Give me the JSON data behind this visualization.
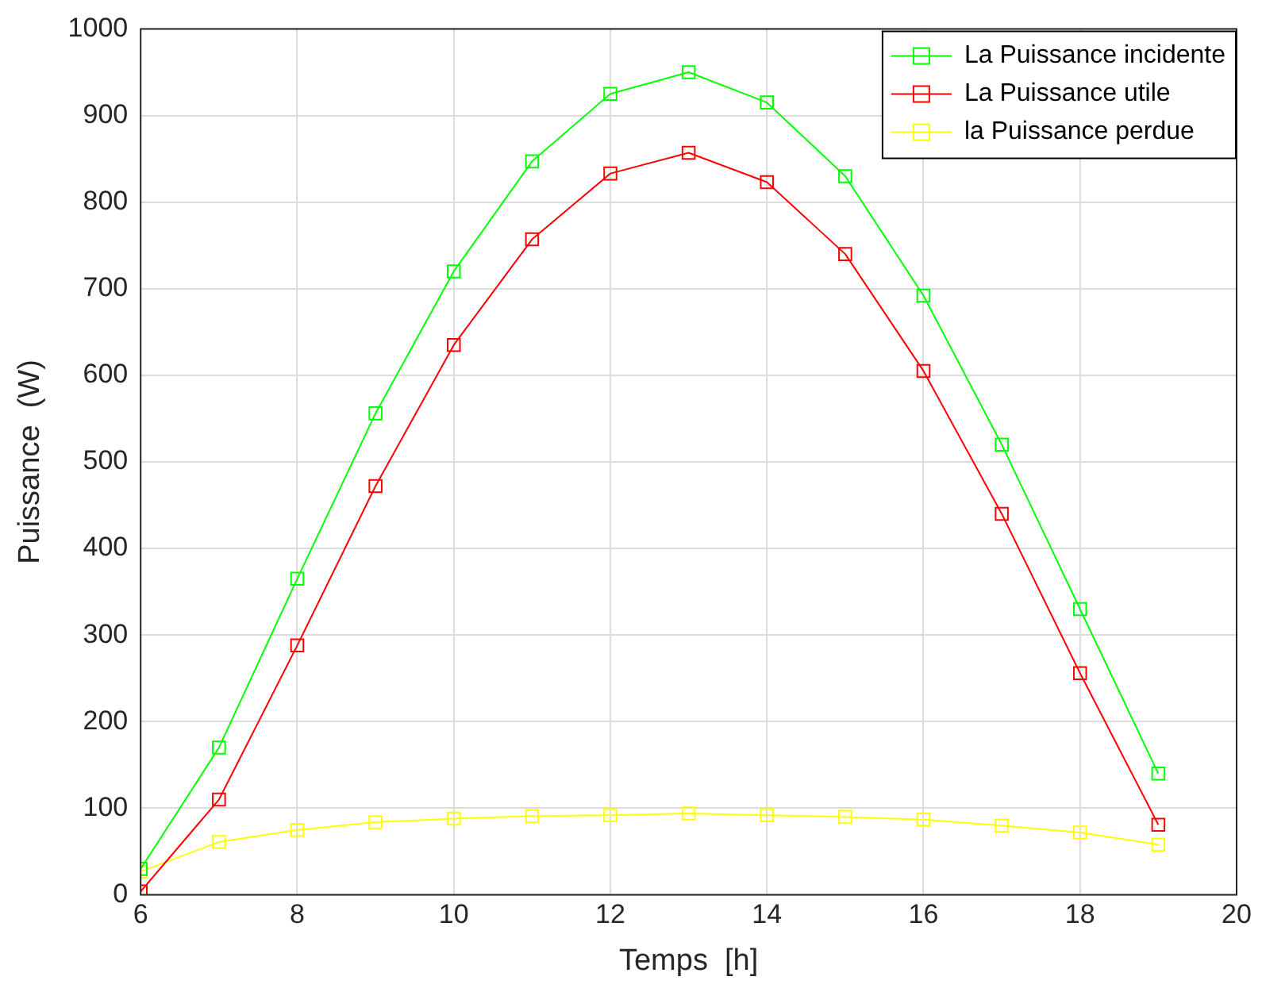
{
  "chart_data": {
    "type": "line",
    "xlabel": "Temps  [h]",
    "ylabel": "Puissance  (W)",
    "x": [
      6,
      7,
      8,
      9,
      10,
      11,
      12,
      13,
      14,
      15,
      16,
      17,
      18,
      19
    ],
    "series": [
      {
        "name": "La Puissance incidente",
        "color": "#00ff00",
        "values": [
          30,
          170,
          365,
          556,
          720,
          847,
          925,
          950,
          915,
          830,
          692,
          520,
          330,
          140
        ]
      },
      {
        "name": "La Puissance utile",
        "color": "#ff0000",
        "values": [
          4,
          110,
          288,
          472,
          635,
          757,
          833,
          857,
          823,
          740,
          605,
          440,
          256,
          81
        ]
      },
      {
        "name": "la Puissance perdue",
        "color": "#ffff00",
        "values": [
          27,
          61,
          75,
          84,
          88,
          91,
          92,
          94,
          92,
          90,
          87,
          80,
          72,
          58
        ]
      }
    ],
    "xlim": [
      6,
      20
    ],
    "xticks": [
      6,
      8,
      10,
      12,
      14,
      16,
      18,
      20
    ],
    "ylim": [
      0,
      1000
    ],
    "yticks": [
      0,
      100,
      200,
      300,
      400,
      500,
      600,
      700,
      800,
      900,
      1000
    ],
    "grid": true,
    "legend": "top right",
    "marker": "square",
    "line_style": "solid"
  }
}
